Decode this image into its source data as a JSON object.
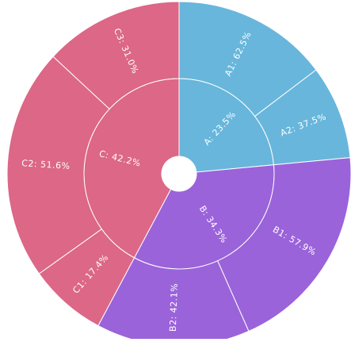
{
  "chart_data": {
    "type": "sunburst",
    "nodes": [
      {
        "label": "A: 23.5%",
        "value": 23.5,
        "color": "#68b6dc",
        "children": [
          {
            "label": "A1: 62.5%",
            "value": 62.5
          },
          {
            "label": "A2: 37.5%",
            "value": 37.5
          }
        ]
      },
      {
        "label": "B: 34.3%",
        "value": 34.3,
        "color": "#9b63da",
        "children": [
          {
            "label": "B1: 57.9%",
            "value": 57.9
          },
          {
            "label": "B2: 42.1%",
            "value": 42.1
          }
        ]
      },
      {
        "label": "C: 42.2%",
        "value": 42.2,
        "color": "#dc6787",
        "children": [
          {
            "label": "C1: 17.4%",
            "value": 17.4
          },
          {
            "label": "C2: 51.6%",
            "value": 51.6
          },
          {
            "label": "C3: 31.0%",
            "value": 31.0
          }
        ]
      }
    ]
  }
}
